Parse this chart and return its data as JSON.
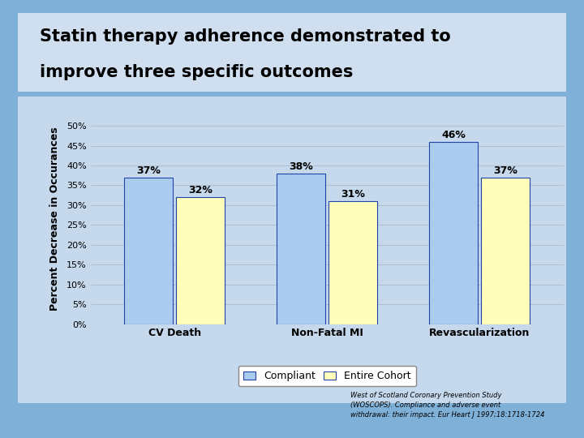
{
  "title_line1": "Statin therapy adherence demonstrated to",
  "title_line2": "improve three specific outcomes",
  "categories": [
    "CV Death",
    "Non-Fatal MI",
    "Revascularization"
  ],
  "compliant_values": [
    37,
    38,
    46
  ],
  "cohort_values": [
    32,
    31,
    37
  ],
  "compliant_color": "#aaccee",
  "cohort_color": "#ffffbb",
  "bar_edge_color": "#2244aa",
  "ylabel": "Percent Decrease in Occurances",
  "yticks": [
    0,
    5,
    10,
    15,
    20,
    25,
    30,
    35,
    40,
    45,
    50
  ],
  "ylim": [
    0,
    53
  ],
  "legend_labels": [
    "Compliant",
    "Entire Cohort"
  ],
  "footnote": "West of Scotland Coronary Prevention Study\n(WOSCOPS). Compliance and adverse event\nwithdrawal: their impact. Eur Heart J 1997;18:1718-1724",
  "outer_bg_top": "#3a5f9a",
  "outer_bg_bot": "#7fb0d8",
  "inner_bg": "#c5d8ec",
  "title_bg": "#d0dff0",
  "grid_color": "#aabbcc",
  "bar_width": 0.32,
  "label_fontsize": 9,
  "tick_fontsize": 8,
  "ylabel_fontsize": 9,
  "value_fontsize": 9,
  "xtick_fontsize": 9
}
